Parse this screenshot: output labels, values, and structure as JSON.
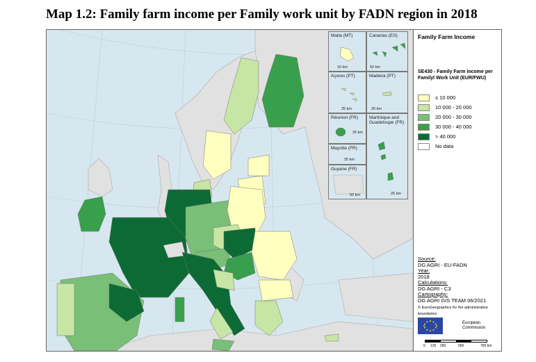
{
  "title": "Map 1.2: Family farm income per Family work unit by FADN region in 2018",
  "legend": {
    "heading": "Family Farm Income",
    "subheading": "SE430 - Family Farm Income per Familyl Work Unit (EUR/FWU)",
    "classes": [
      {
        "label": "≤ 10 000",
        "color": "#ffffbf"
      },
      {
        "label": "10 000 - 20 000",
        "color": "#c7e5a4"
      },
      {
        "label": "20 000 - 30 000",
        "color": "#79bf77"
      },
      {
        "label": "30 000 - 40 000",
        "color": "#38a04d"
      },
      {
        "label": "> 40 000",
        "color": "#0c6b34"
      },
      {
        "label": "No data",
        "color": "#ffffff"
      }
    ]
  },
  "insets": {
    "malta": {
      "label": "Malta (MT)",
      "scale": "10 km"
    },
    "canarias": {
      "label": "Canarias (ES)",
      "scale": "50 km"
    },
    "acores": {
      "label": "Açores (PT)",
      "scale": "25 km"
    },
    "madeira": {
      "label": "Madeira (PT)",
      "scale": "25 km"
    },
    "reunion": {
      "label": "Réunion (FR)",
      "scale": "25 km"
    },
    "martinique": {
      "label": "Martinique and Guadeloupe (FR)",
      "scale": "25 km"
    },
    "mayotte": {
      "label": "Mayotte (FR)",
      "scale": "25 km"
    },
    "guyane": {
      "label": "Guyane (FR)",
      "scale": "50 km"
    }
  },
  "metadata": {
    "source_heading": "Source:",
    "source": "DG AGRI - EU-FADN",
    "year_heading": "Year:",
    "year": "2018",
    "calc_heading": "Calculations:",
    "calc": "DG AGRI - C3",
    "carto_heading": "Cartography:",
    "carto": "DG AGRI GIS TEAM 06/2021",
    "note": "© EuroGeographics for the administrative boundaries"
  },
  "logo": {
    "org_line1": "European",
    "org_line2": "Commission"
  },
  "scale_bar": {
    "ticks": [
      "0",
      "125",
      "250",
      "500",
      "750 km"
    ]
  }
}
